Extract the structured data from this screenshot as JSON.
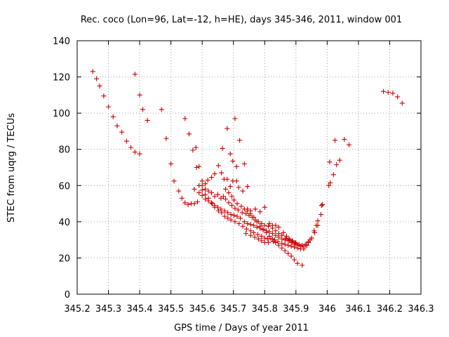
{
  "chart_data": {
    "type": "scatter",
    "title": "Rec. coco (Lon=96, Lat=-12, h=HE), days 345-346, 2011, window 001",
    "xlabel": "GPS time / Days of year 2011",
    "ylabel": "STEC from uqrg / TECUs",
    "xlim": [
      345.2,
      346.3
    ],
    "ylim": [
      0,
      140
    ],
    "x_ticks": [
      345.2,
      345.3,
      345.4,
      345.5,
      345.6,
      345.7,
      345.8,
      345.9,
      346,
      346.1,
      346.2,
      346.3
    ],
    "x_tick_labels": [
      "345.2",
      "345.3",
      "345.4",
      "345.5",
      "345.6",
      "345.7",
      "345.8",
      "345.9",
      "346",
      "346.1",
      "346.2",
      "346.3"
    ],
    "y_ticks": [
      0,
      20,
      40,
      60,
      80,
      100,
      120,
      140
    ],
    "y_tick_labels": [
      "0",
      "20",
      "40",
      "60",
      "80",
      "100",
      "120",
      "140"
    ],
    "grid": true,
    "marker": "+",
    "color": "#cc0000",
    "points": [
      [
        345.25,
        123
      ],
      [
        345.262,
        119
      ],
      [
        345.272,
        115
      ],
      [
        345.285,
        109.5
      ],
      [
        345.3,
        103.5
      ],
      [
        345.315,
        98
      ],
      [
        345.328,
        93
      ],
      [
        345.343,
        89.5
      ],
      [
        345.358,
        84.5
      ],
      [
        345.372,
        81
      ],
      [
        345.385,
        78.5
      ],
      [
        345.4,
        77.5
      ],
      [
        345.385,
        121.5
      ],
      [
        345.4,
        110
      ],
      [
        345.41,
        102
      ],
      [
        345.425,
        96
      ],
      [
        345.47,
        102
      ],
      [
        345.485,
        86
      ],
      [
        345.5,
        72
      ],
      [
        345.51,
        62.5
      ],
      [
        345.525,
        57
      ],
      [
        345.535,
        53
      ],
      [
        345.545,
        50.5
      ],
      [
        345.555,
        49.5
      ],
      [
        345.565,
        50
      ],
      [
        345.575,
        50
      ],
      [
        345.585,
        51
      ],
      [
        345.545,
        97
      ],
      [
        345.558,
        88.5
      ],
      [
        345.57,
        79.5
      ],
      [
        345.58,
        81
      ],
      [
        345.582,
        70
      ],
      [
        345.59,
        70.5
      ],
      [
        345.6,
        62.5
      ],
      [
        345.61,
        61
      ],
      [
        345.618,
        63
      ],
      [
        345.63,
        64.5
      ],
      [
        345.64,
        66.5
      ],
      [
        345.652,
        71
      ],
      [
        345.662,
        67
      ],
      [
        345.67,
        63.5
      ],
      [
        345.68,
        63.5
      ],
      [
        345.69,
        59.5
      ],
      [
        345.698,
        62.5
      ],
      [
        345.71,
        62.5
      ],
      [
        345.717,
        59
      ],
      [
        345.73,
        57
      ],
      [
        345.665,
        80.5
      ],
      [
        345.68,
        91.5
      ],
      [
        345.69,
        77.5
      ],
      [
        345.698,
        73.5
      ],
      [
        345.705,
        97
      ],
      [
        345.71,
        70.5
      ],
      [
        345.72,
        85
      ],
      [
        345.735,
        72
      ],
      [
        345.745,
        59.5
      ],
      [
        345.575,
        58
      ],
      [
        345.59,
        60
      ],
      [
        345.6,
        57.5
      ],
      [
        345.61,
        55
      ],
      [
        345.62,
        53
      ],
      [
        345.632,
        50
      ],
      [
        345.64,
        48
      ],
      [
        345.652,
        46
      ],
      [
        345.662,
        45
      ],
      [
        345.672,
        43
      ],
      [
        345.682,
        42
      ],
      [
        345.692,
        41
      ],
      [
        345.705,
        40
      ],
      [
        345.718,
        39
      ],
      [
        345.73,
        37.5
      ],
      [
        345.742,
        36
      ],
      [
        345.755,
        35
      ],
      [
        345.765,
        34
      ],
      [
        345.778,
        33
      ],
      [
        345.79,
        32
      ],
      [
        345.8,
        31
      ],
      [
        345.81,
        30.5
      ],
      [
        345.82,
        30.5
      ],
      [
        345.832,
        30
      ],
      [
        345.842,
        29
      ],
      [
        345.855,
        28
      ],
      [
        345.865,
        27.5
      ],
      [
        345.875,
        27
      ],
      [
        345.885,
        26.5
      ],
      [
        345.895,
        26
      ],
      [
        345.905,
        25.5
      ],
      [
        345.915,
        25
      ],
      [
        345.925,
        25
      ],
      [
        345.935,
        27
      ],
      [
        345.945,
        30
      ],
      [
        345.59,
        56
      ],
      [
        345.6,
        54.5
      ],
      [
        345.61,
        52.5
      ],
      [
        345.62,
        51.5
      ],
      [
        345.63,
        50.5
      ],
      [
        345.64,
        49
      ],
      [
        345.65,
        48
      ],
      [
        345.66,
        47
      ],
      [
        345.672,
        46
      ],
      [
        345.682,
        45
      ],
      [
        345.692,
        44
      ],
      [
        345.702,
        43.5
      ],
      [
        345.712,
        43
      ],
      [
        345.722,
        42
      ],
      [
        345.735,
        40
      ],
      [
        345.745,
        39
      ],
      [
        345.755,
        38.5
      ],
      [
        345.765,
        38
      ],
      [
        345.775,
        37
      ],
      [
        345.785,
        36.5
      ],
      [
        345.795,
        35.5
      ],
      [
        345.805,
        35
      ],
      [
        345.815,
        34.5
      ],
      [
        345.825,
        33.5
      ],
      [
        345.835,
        32.5
      ],
      [
        345.845,
        31.5
      ],
      [
        345.855,
        30.5
      ],
      [
        345.865,
        30
      ],
      [
        345.875,
        29.5
      ],
      [
        345.885,
        28.5
      ],
      [
        345.895,
        27.5
      ],
      [
        345.905,
        27
      ],
      [
        345.915,
        26.5
      ],
      [
        345.925,
        26
      ],
      [
        345.935,
        27
      ],
      [
        345.94,
        28.5
      ],
      [
        345.95,
        31
      ],
      [
        345.96,
        34
      ],
      [
        345.97,
        38
      ],
      [
        345.6,
        60
      ],
      [
        345.61,
        58
      ],
      [
        345.62,
        57
      ],
      [
        345.63,
        56
      ],
      [
        345.64,
        54
      ],
      [
        345.65,
        55
      ],
      [
        345.66,
        53
      ],
      [
        345.668,
        54
      ],
      [
        345.675,
        52.5
      ],
      [
        345.685,
        50.5
      ],
      [
        345.695,
        49
      ],
      [
        345.705,
        47.5
      ],
      [
        345.715,
        46.5
      ],
      [
        345.728,
        45
      ],
      [
        345.74,
        44.5
      ],
      [
        345.75,
        43.5
      ],
      [
        345.76,
        42.5
      ],
      [
        345.77,
        41
      ],
      [
        345.78,
        40
      ],
      [
        345.79,
        39
      ],
      [
        345.8,
        38
      ],
      [
        345.812,
        37.5
      ],
      [
        345.825,
        36.5
      ],
      [
        345.835,
        35
      ],
      [
        345.845,
        33.5
      ],
      [
        345.855,
        32.5
      ],
      [
        345.868,
        31
      ],
      [
        345.878,
        30.5
      ],
      [
        345.888,
        29.5
      ],
      [
        345.898,
        28.5
      ],
      [
        345.91,
        27.5
      ],
      [
        345.92,
        27
      ],
      [
        345.93,
        27.5
      ],
      [
        345.94,
        29
      ],
      [
        345.95,
        31
      ],
      [
        345.958,
        35
      ],
      [
        345.965,
        38
      ],
      [
        345.97,
        40.5
      ],
      [
        345.98,
        44
      ],
      [
        345.982,
        49
      ],
      [
        345.985,
        49.5
      ],
      [
        345.675,
        58
      ],
      [
        345.685,
        56
      ],
      [
        345.695,
        54
      ],
      [
        345.702,
        52
      ],
      [
        345.712,
        50
      ],
      [
        345.725,
        48.5
      ],
      [
        345.735,
        47
      ],
      [
        345.745,
        46
      ],
      [
        345.755,
        44.5
      ],
      [
        345.765,
        42.5
      ],
      [
        345.775,
        40
      ],
      [
        345.785,
        37.5
      ],
      [
        345.795,
        36
      ],
      [
        345.805,
        34
      ],
      [
        345.815,
        32
      ],
      [
        345.825,
        30.5
      ],
      [
        345.835,
        28.5
      ],
      [
        345.845,
        27
      ],
      [
        345.855,
        25.5
      ],
      [
        345.865,
        24
      ],
      [
        345.875,
        22.5
      ],
      [
        345.885,
        21
      ],
      [
        345.895,
        19
      ],
      [
        345.905,
        17
      ],
      [
        345.92,
        16
      ],
      [
        345.745,
        47
      ],
      [
        345.755,
        46
      ],
      [
        345.77,
        47
      ],
      [
        345.785,
        45.5
      ],
      [
        345.8,
        48
      ],
      [
        345.815,
        39
      ],
      [
        345.825,
        38
      ],
      [
        345.835,
        38
      ],
      [
        345.845,
        37
      ],
      [
        345.86,
        34
      ],
      [
        345.87,
        32
      ],
      [
        345.88,
        30
      ],
      [
        345.89,
        29
      ],
      [
        345.9,
        28
      ],
      [
        345.74,
        33.5
      ],
      [
        345.755,
        32.5
      ],
      [
        345.768,
        31.5
      ],
      [
        345.78,
        30.5
      ],
      [
        345.79,
        29.5
      ],
      [
        345.8,
        28.5
      ],
      [
        345.812,
        28.5
      ],
      [
        345.828,
        29
      ],
      [
        346.005,
        60
      ],
      [
        346.01,
        61.5
      ],
      [
        346.02,
        66
      ],
      [
        346.03,
        71.5
      ],
      [
        346.04,
        74
      ],
      [
        346.055,
        85.5
      ],
      [
        346.07,
        82.5
      ],
      [
        346.008,
        73
      ],
      [
        346.025,
        85
      ],
      [
        346.18,
        112
      ],
      [
        346.195,
        111.5
      ],
      [
        346.21,
        111
      ],
      [
        346.225,
        109
      ],
      [
        346.24,
        105.5
      ]
    ]
  }
}
